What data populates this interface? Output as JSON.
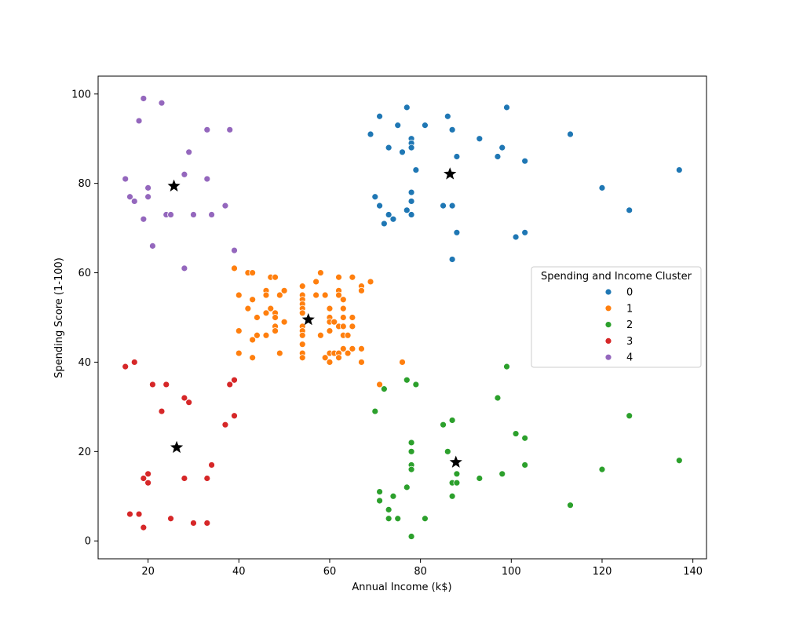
{
  "chart_data": {
    "type": "scatter",
    "title": "",
    "xlabel": "Annual Income (k$)",
    "ylabel": "Spending Score (1-100)",
    "xlim": [
      9,
      143
    ],
    "ylim": [
      -4,
      104
    ],
    "xticks": [
      20,
      40,
      60,
      80,
      100,
      120,
      140
    ],
    "yticks": [
      0,
      20,
      40,
      60,
      80,
      100
    ],
    "grid": false,
    "legend": {
      "title": "Spending and Income Cluster",
      "placement": "center-right"
    },
    "series": [
      {
        "name": "0",
        "color": "#1f77b4",
        "points": [
          [
            69,
            91
          ],
          [
            71,
            95
          ],
          [
            70,
            77
          ],
          [
            71,
            75
          ],
          [
            72,
            71
          ],
          [
            73,
            88
          ],
          [
            73,
            73
          ],
          [
            74,
            72
          ],
          [
            75,
            93
          ],
          [
            76,
            87
          ],
          [
            77,
            97
          ],
          [
            77,
            74
          ],
          [
            78,
            90
          ],
          [
            78,
            89
          ],
          [
            78,
            88
          ],
          [
            78,
            78
          ],
          [
            78,
            76
          ],
          [
            78,
            73
          ],
          [
            79,
            83
          ],
          [
            81,
            93
          ],
          [
            85,
            75
          ],
          [
            86,
            95
          ],
          [
            87,
            92
          ],
          [
            87,
            75
          ],
          [
            87,
            63
          ],
          [
            88,
            86
          ],
          [
            88,
            69
          ],
          [
            93,
            90
          ],
          [
            97,
            86
          ],
          [
            98,
            88
          ],
          [
            99,
            97
          ],
          [
            101,
            68
          ],
          [
            103,
            85
          ],
          [
            103,
            69
          ],
          [
            113,
            91
          ],
          [
            120,
            79
          ],
          [
            126,
            74
          ],
          [
            137,
            83
          ]
        ]
      },
      {
        "name": "1",
        "color": "#ff7f0e",
        "points": [
          [
            39,
            61
          ],
          [
            40,
            55
          ],
          [
            40,
            47
          ],
          [
            40,
            42
          ],
          [
            42,
            60
          ],
          [
            42,
            52
          ],
          [
            43,
            60
          ],
          [
            43,
            54
          ],
          [
            43,
            45
          ],
          [
            43,
            41
          ],
          [
            44,
            50
          ],
          [
            44,
            46
          ],
          [
            46,
            56
          ],
          [
            46,
            55
          ],
          [
            46,
            51
          ],
          [
            46,
            46
          ],
          [
            47,
            59
          ],
          [
            47,
            52
          ],
          [
            48,
            59
          ],
          [
            48,
            51
          ],
          [
            48,
            50
          ],
          [
            48,
            48
          ],
          [
            48,
            47
          ],
          [
            49,
            55
          ],
          [
            49,
            42
          ],
          [
            50,
            56
          ],
          [
            50,
            49
          ],
          [
            54,
            57
          ],
          [
            54,
            55
          ],
          [
            54,
            54
          ],
          [
            54,
            53
          ],
          [
            54,
            52
          ],
          [
            54,
            51
          ],
          [
            54,
            48
          ],
          [
            54,
            47
          ],
          [
            54,
            46
          ],
          [
            54,
            44
          ],
          [
            54,
            42
          ],
          [
            54,
            41
          ],
          [
            57,
            58
          ],
          [
            57,
            55
          ],
          [
            58,
            60
          ],
          [
            58,
            46
          ],
          [
            59,
            55
          ],
          [
            59,
            41
          ],
          [
            60,
            52
          ],
          [
            60,
            50
          ],
          [
            60,
            49
          ],
          [
            60,
            47
          ],
          [
            60,
            42
          ],
          [
            60,
            40
          ],
          [
            61,
            49
          ],
          [
            61,
            42
          ],
          [
            62,
            59
          ],
          [
            62,
            56
          ],
          [
            62,
            55
          ],
          [
            62,
            48
          ],
          [
            62,
            42
          ],
          [
            62,
            41
          ],
          [
            63,
            54
          ],
          [
            63,
            52
          ],
          [
            63,
            50
          ],
          [
            63,
            48
          ],
          [
            63,
            46
          ],
          [
            63,
            43
          ],
          [
            64,
            46
          ],
          [
            64,
            42
          ],
          [
            65,
            59
          ],
          [
            65,
            50
          ],
          [
            65,
            48
          ],
          [
            65,
            43
          ],
          [
            67,
            57
          ],
          [
            67,
            56
          ],
          [
            67,
            43
          ],
          [
            67,
            40
          ],
          [
            69,
            58
          ],
          [
            71,
            35
          ],
          [
            76,
            40
          ]
        ]
      },
      {
        "name": "2",
        "color": "#2ca02c",
        "points": [
          [
            70,
            29
          ],
          [
            71,
            11
          ],
          [
            71,
            9
          ],
          [
            72,
            34
          ],
          [
            73,
            7
          ],
          [
            73,
            5
          ],
          [
            74,
            10
          ],
          [
            75,
            5
          ],
          [
            77,
            36
          ],
          [
            77,
            12
          ],
          [
            78,
            22
          ],
          [
            78,
            20
          ],
          [
            78,
            17
          ],
          [
            78,
            16
          ],
          [
            78,
            1
          ],
          [
            79,
            35
          ],
          [
            81,
            5
          ],
          [
            85,
            26
          ],
          [
            86,
            20
          ],
          [
            87,
            27
          ],
          [
            87,
            13
          ],
          [
            87,
            10
          ],
          [
            88,
            15
          ],
          [
            88,
            13
          ],
          [
            93,
            14
          ],
          [
            97,
            32
          ],
          [
            98,
            15
          ],
          [
            99,
            39
          ],
          [
            101,
            24
          ],
          [
            103,
            23
          ],
          [
            103,
            17
          ],
          [
            113,
            8
          ],
          [
            120,
            16
          ],
          [
            126,
            28
          ],
          [
            137,
            18
          ]
        ]
      },
      {
        "name": "3",
        "color": "#d62728",
        "points": [
          [
            15,
            39
          ],
          [
            16,
            6
          ],
          [
            17,
            40
          ],
          [
            18,
            6
          ],
          [
            19,
            14
          ],
          [
            19,
            3
          ],
          [
            20,
            15
          ],
          [
            20,
            13
          ],
          [
            21,
            35
          ],
          [
            23,
            29
          ],
          [
            24,
            35
          ],
          [
            25,
            5
          ],
          [
            28,
            32
          ],
          [
            28,
            14
          ],
          [
            29,
            31
          ],
          [
            30,
            4
          ],
          [
            33,
            14
          ],
          [
            33,
            4
          ],
          [
            34,
            17
          ],
          [
            37,
            26
          ],
          [
            38,
            35
          ],
          [
            39,
            36
          ],
          [
            39,
            28
          ]
        ]
      },
      {
        "name": "4",
        "color": "#9467bd",
        "points": [
          [
            15,
            81
          ],
          [
            16,
            77
          ],
          [
            17,
            76
          ],
          [
            18,
            94
          ],
          [
            19,
            99
          ],
          [
            19,
            72
          ],
          [
            20,
            79
          ],
          [
            20,
            77
          ],
          [
            21,
            66
          ],
          [
            23,
            98
          ],
          [
            24,
            73
          ],
          [
            25,
            73
          ],
          [
            28,
            82
          ],
          [
            28,
            61
          ],
          [
            29,
            87
          ],
          [
            30,
            73
          ],
          [
            33,
            92
          ],
          [
            33,
            81
          ],
          [
            34,
            73
          ],
          [
            37,
            75
          ],
          [
            38,
            92
          ],
          [
            39,
            65
          ]
        ]
      }
    ],
    "centroids": [
      [
        86.5,
        82.1
      ],
      [
        55.3,
        49.5
      ],
      [
        87.8,
        17.6
      ],
      [
        26.3,
        20.9
      ],
      [
        25.7,
        79.4
      ]
    ]
  }
}
